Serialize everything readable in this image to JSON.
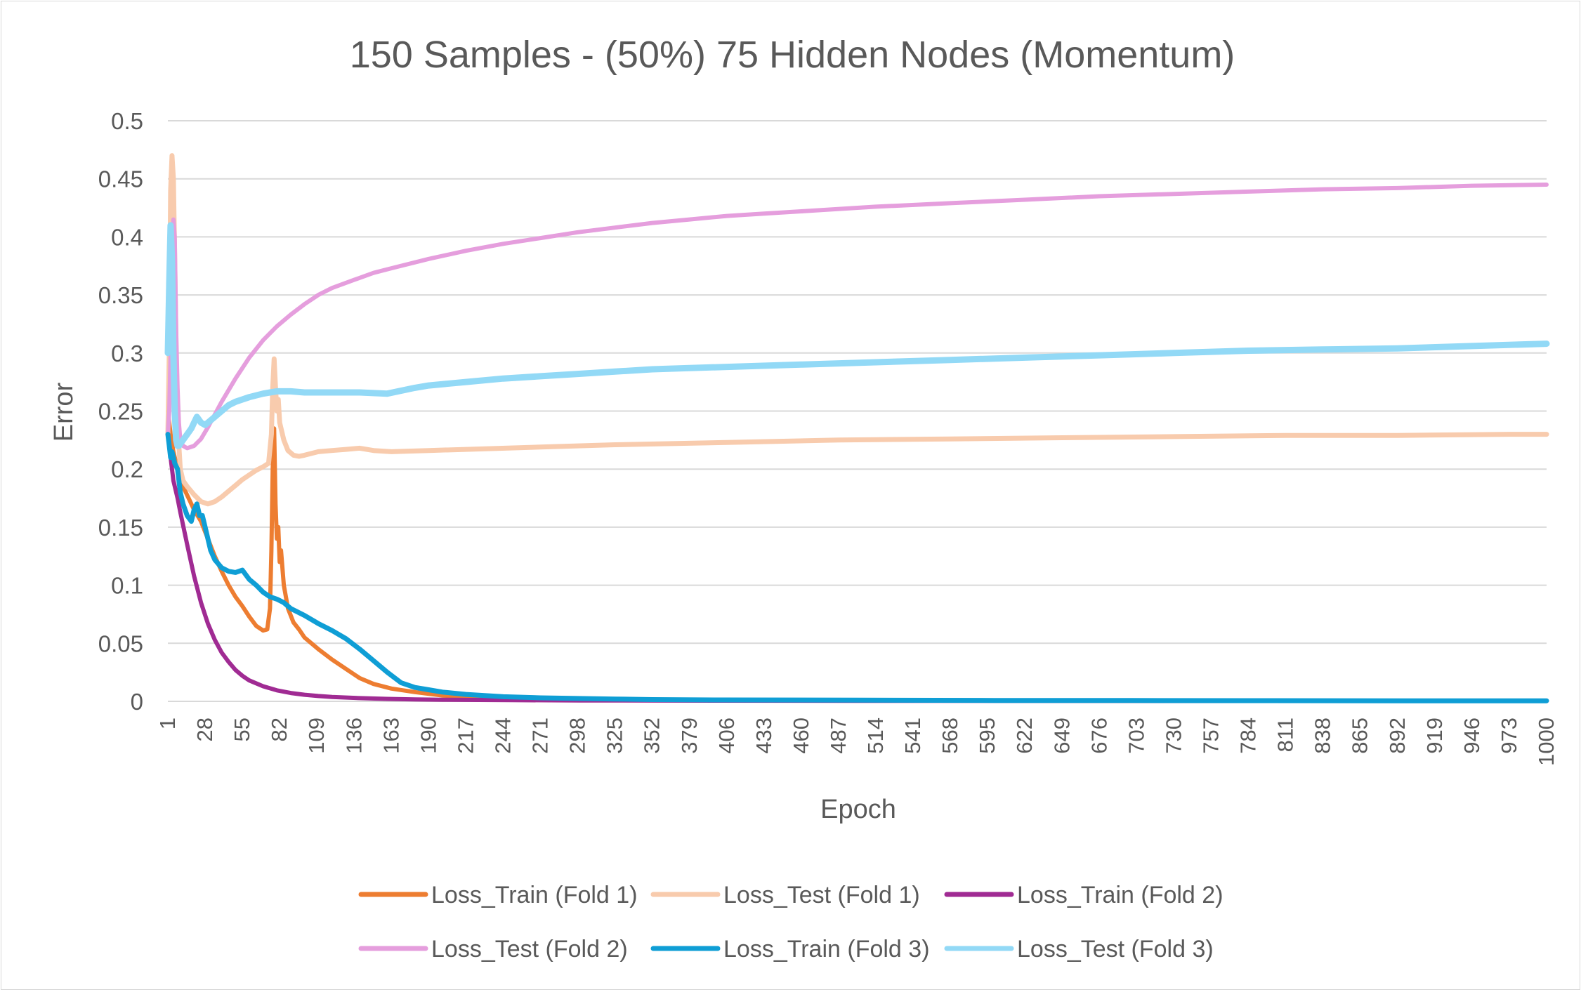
{
  "chart_data": {
    "type": "line",
    "title": "150 Samples - (50%) 75 Hidden Nodes (Momentum)",
    "xlabel": "Epoch",
    "ylabel": "Error",
    "xlim": [
      1,
      1000
    ],
    "ylim": [
      0,
      0.5
    ],
    "grid": true,
    "legend_position": "bottom",
    "y_ticks": [
      "0",
      "0.05",
      "0.1",
      "0.15",
      "0.2",
      "0.25",
      "0.3",
      "0.35",
      "0.4",
      "0.45",
      "0.5"
    ],
    "x_ticks": [
      "1",
      "28",
      "55",
      "82",
      "109",
      "136",
      "163",
      "190",
      "217",
      "244",
      "271",
      "298",
      "325",
      "352",
      "379",
      "406",
      "433",
      "460",
      "487",
      "514",
      "541",
      "568",
      "595",
      "622",
      "649",
      "676",
      "703",
      "730",
      "757",
      "784",
      "811",
      "838",
      "865",
      "892",
      "919",
      "946",
      "973",
      "1000"
    ],
    "series": [
      {
        "name": "Loss_Train (Fold 1)",
        "color": "#ED7D31",
        "x": [
          1,
          3,
          5,
          8,
          12,
          16,
          20,
          25,
          30,
          35,
          40,
          45,
          50,
          55,
          60,
          65,
          70,
          73,
          75,
          76,
          77,
          78,
          79,
          80,
          81,
          82,
          83,
          85,
          88,
          92,
          96,
          100,
          110,
          120,
          130,
          140,
          150,
          163,
          180,
          200,
          217,
          244,
          271,
          300,
          350,
          400,
          500,
          600,
          700,
          800,
          900,
          1000
        ],
        "y": [
          0.25,
          0.23,
          0.215,
          0.2,
          0.185,
          0.175,
          0.165,
          0.155,
          0.14,
          0.125,
          0.112,
          0.1,
          0.09,
          0.082,
          0.073,
          0.065,
          0.061,
          0.062,
          0.08,
          0.13,
          0.2,
          0.235,
          0.17,
          0.14,
          0.15,
          0.12,
          0.13,
          0.1,
          0.08,
          0.068,
          0.062,
          0.055,
          0.045,
          0.036,
          0.028,
          0.02,
          0.015,
          0.011,
          0.008,
          0.005,
          0.004,
          0.003,
          0.002,
          0.0015,
          0.001,
          0.001,
          0.0008,
          0.0006,
          0.0005,
          0.0005,
          0.0005,
          0.0005
        ]
      },
      {
        "name": "Loss_Test (Fold 1)",
        "color": "#F8CBAD",
        "x": [
          1,
          2,
          3,
          4,
          5,
          6,
          7,
          8,
          9,
          10,
          12,
          15,
          20,
          25,
          30,
          35,
          40,
          45,
          50,
          55,
          60,
          65,
          70,
          74,
          76,
          77,
          78,
          79,
          80,
          81,
          82,
          85,
          88,
          92,
          96,
          100,
          110,
          120,
          130,
          140,
          150,
          163,
          190,
          217,
          271,
          325,
          406,
          487,
          568,
          649,
          730,
          811,
          892,
          973,
          1000
        ],
        "y": [
          0.23,
          0.3,
          0.44,
          0.47,
          0.45,
          0.38,
          0.3,
          0.25,
          0.22,
          0.2,
          0.19,
          0.185,
          0.178,
          0.172,
          0.17,
          0.172,
          0.176,
          0.181,
          0.186,
          0.191,
          0.195,
          0.199,
          0.202,
          0.205,
          0.23,
          0.27,
          0.295,
          0.27,
          0.25,
          0.26,
          0.24,
          0.225,
          0.216,
          0.212,
          0.211,
          0.212,
          0.215,
          0.216,
          0.217,
          0.218,
          0.216,
          0.215,
          0.216,
          0.217,
          0.219,
          0.221,
          0.223,
          0.225,
          0.226,
          0.227,
          0.228,
          0.229,
          0.229,
          0.23,
          0.23
        ]
      },
      {
        "name": "Loss_Train (Fold 2)",
        "color": "#A02B93",
        "x": [
          1,
          3,
          5,
          8,
          10,
          15,
          20,
          25,
          30,
          35,
          40,
          45,
          50,
          55,
          60,
          70,
          80,
          90,
          100,
          110,
          120,
          140,
          160,
          180,
          200,
          250,
          300,
          400,
          500,
          700,
          1000
        ],
        "y": [
          0.23,
          0.21,
          0.19,
          0.175,
          0.163,
          0.135,
          0.108,
          0.085,
          0.067,
          0.053,
          0.042,
          0.034,
          0.027,
          0.022,
          0.018,
          0.013,
          0.0095,
          0.0072,
          0.0057,
          0.0046,
          0.0038,
          0.0028,
          0.0021,
          0.0017,
          0.0014,
          0.001,
          0.0008,
          0.0006,
          0.0005,
          0.0004,
          0.0003
        ]
      },
      {
        "name": "Loss_Test (Fold 2)",
        "color": "#E59EDD",
        "x": [
          1,
          2,
          3,
          4,
          5,
          6,
          7,
          8,
          9,
          10,
          12,
          15,
          20,
          25,
          30,
          35,
          40,
          50,
          60,
          70,
          80,
          90,
          100,
          110,
          120,
          136,
          150,
          163,
          190,
          217,
          244,
          271,
          298,
          325,
          352,
          379,
          406,
          433,
          460,
          514,
          568,
          622,
          676,
          730,
          784,
          838,
          892,
          946,
          1000
        ],
        "y": [
          0.23,
          0.25,
          0.3,
          0.38,
          0.415,
          0.4,
          0.32,
          0.27,
          0.24,
          0.225,
          0.22,
          0.218,
          0.22,
          0.226,
          0.236,
          0.247,
          0.258,
          0.278,
          0.296,
          0.311,
          0.323,
          0.333,
          0.342,
          0.35,
          0.356,
          0.363,
          0.369,
          0.373,
          0.381,
          0.388,
          0.394,
          0.399,
          0.404,
          0.408,
          0.412,
          0.415,
          0.418,
          0.42,
          0.422,
          0.426,
          0.429,
          0.432,
          0.435,
          0.437,
          0.439,
          0.441,
          0.442,
          0.444,
          0.445
        ]
      },
      {
        "name": "Loss_Train (Fold 3)",
        "color": "#0F9ED5",
        "x": [
          1,
          2,
          3,
          4,
          5,
          6,
          8,
          10,
          12,
          15,
          18,
          20,
          22,
          24,
          26,
          28,
          30,
          32,
          35,
          40,
          45,
          50,
          55,
          60,
          65,
          70,
          75,
          80,
          85,
          90,
          100,
          110,
          120,
          130,
          140,
          150,
          160,
          170,
          180,
          190,
          200,
          217,
          244,
          271,
          298,
          325,
          352,
          400,
          500,
          600,
          700,
          800,
          900,
          1000
        ],
        "y": [
          0.23,
          0.22,
          0.21,
          0.215,
          0.21,
          0.205,
          0.2,
          0.18,
          0.17,
          0.16,
          0.155,
          0.165,
          0.17,
          0.16,
          0.16,
          0.15,
          0.14,
          0.13,
          0.122,
          0.115,
          0.112,
          0.111,
          0.113,
          0.105,
          0.1,
          0.094,
          0.09,
          0.088,
          0.085,
          0.08,
          0.074,
          0.067,
          0.061,
          0.054,
          0.045,
          0.035,
          0.025,
          0.016,
          0.012,
          0.01,
          0.008,
          0.006,
          0.004,
          0.003,
          0.0025,
          0.002,
          0.0015,
          0.0012,
          0.001,
          0.0008,
          0.0007,
          0.0006,
          0.0005,
          0.0005
        ]
      },
      {
        "name": "Loss_Test (Fold 3)",
        "color": "#92D9F6",
        "x": [
          1,
          2,
          3,
          4,
          5,
          6,
          7,
          8,
          9,
          10,
          12,
          15,
          18,
          20,
          22,
          25,
          28,
          30,
          35,
          40,
          45,
          50,
          55,
          60,
          70,
          80,
          90,
          100,
          120,
          140,
          160,
          180,
          190,
          217,
          244,
          271,
          298,
          325,
          352,
          379,
          406,
          460,
          514,
          568,
          622,
          676,
          730,
          784,
          838,
          892,
          946,
          1000
        ],
        "y": [
          0.3,
          0.36,
          0.41,
          0.38,
          0.3,
          0.25,
          0.225,
          0.22,
          0.22,
          0.222,
          0.225,
          0.23,
          0.235,
          0.24,
          0.245,
          0.24,
          0.238,
          0.24,
          0.245,
          0.25,
          0.255,
          0.258,
          0.26,
          0.262,
          0.265,
          0.267,
          0.267,
          0.266,
          0.266,
          0.266,
          0.265,
          0.27,
          0.272,
          0.275,
          0.278,
          0.28,
          0.282,
          0.284,
          0.286,
          0.287,
          0.288,
          0.29,
          0.292,
          0.294,
          0.296,
          0.298,
          0.3,
          0.302,
          0.303,
          0.304,
          0.306,
          0.308
        ]
      }
    ]
  }
}
